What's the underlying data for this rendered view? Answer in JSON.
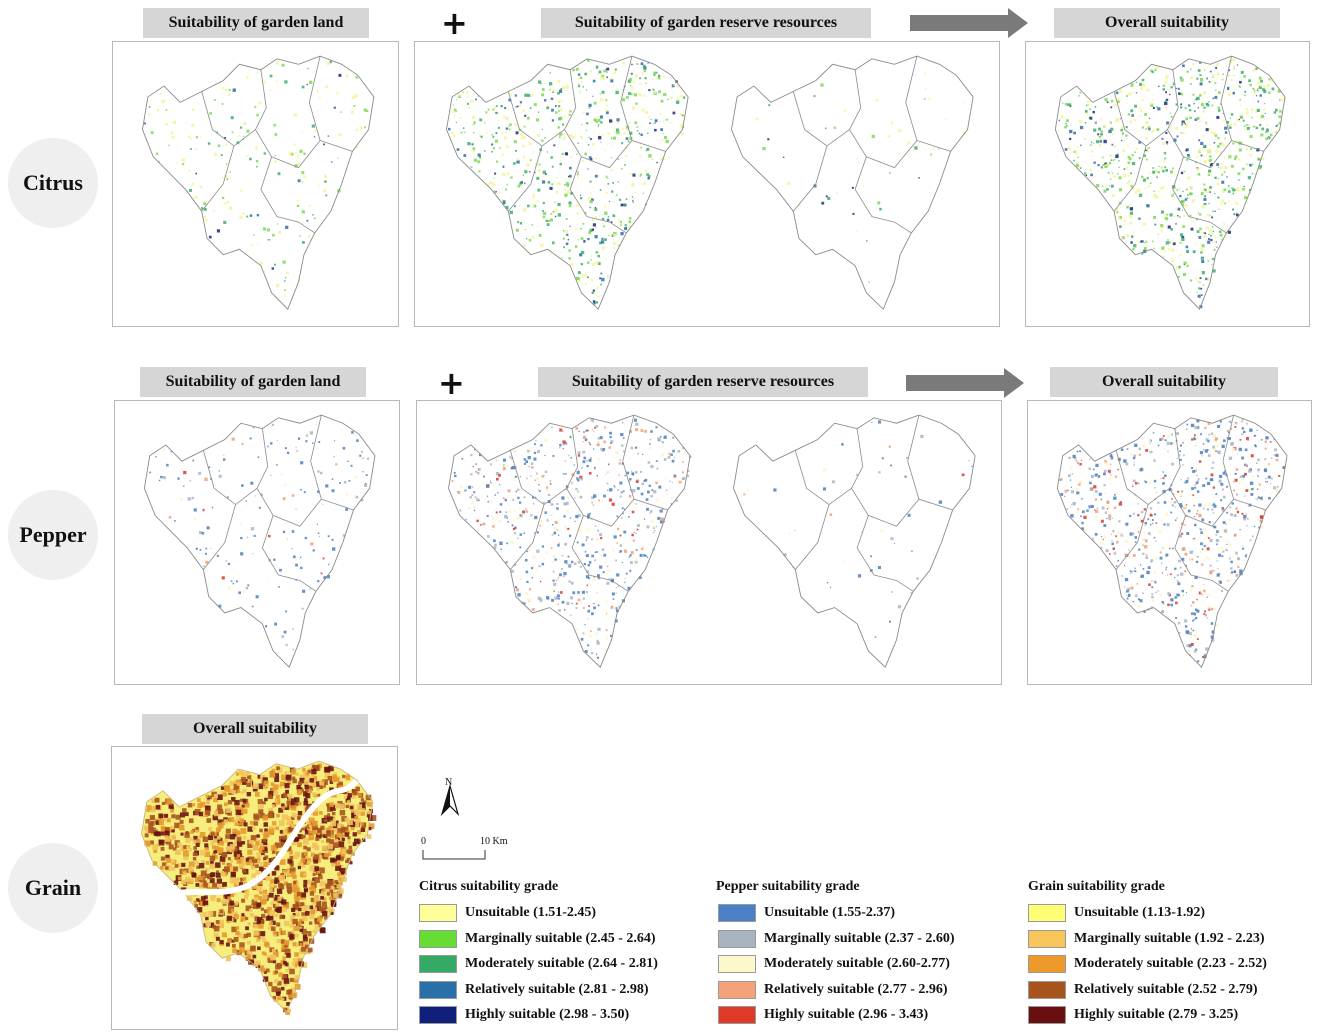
{
  "rows": {
    "citrus": {
      "label": "Citrus",
      "garden_land_title": "Suitability of garden land",
      "reserve_title": "Suitability of garden reserve resources",
      "overall_title": "Overall suitability",
      "plus": "+",
      "palette": [
        "#f5f59a",
        "#7ed957",
        "#3dae6a",
        "#2f6fa7",
        "#1a2a7a"
      ]
    },
    "pepper": {
      "label": "Pepper",
      "garden_land_title": "Suitability of garden land",
      "reserve_title": "Suitability of garden reserve resources",
      "overall_title": "Overall suitability",
      "plus": "+",
      "palette": [
        "#4a7fc0",
        "#a9b6c2",
        "#fbf6c8",
        "#f0a07a",
        "#d83a2c"
      ]
    },
    "grain": {
      "label": "Grain",
      "overall_title": "Overall suitability",
      "palette": [
        "#f6ee7c",
        "#f2c35d",
        "#e6982e",
        "#a9541e",
        "#6a1412"
      ]
    }
  },
  "map_extras": {
    "north_label": "N",
    "scale_start": "0",
    "scale_end": "10 Km"
  },
  "legends": {
    "citrus": {
      "title": "Citrus suitability grade",
      "items": [
        {
          "label": "Unsuitable (1.51-2.45)",
          "color": "#ffff99"
        },
        {
          "label": "Marginally suitable (2.45 - 2.64)",
          "color": "#66dd33"
        },
        {
          "label": "Moderately suitable (2.64 - 2.81)",
          "color": "#33aa66"
        },
        {
          "label": "Relatively suitable (2.81 - 2.98)",
          "color": "#2a70a8"
        },
        {
          "label": "Highly suitable (2.98 - 3.50)",
          "color": "#101f7a"
        }
      ]
    },
    "pepper": {
      "title": "Pepper suitability grade",
      "items": [
        {
          "label": "Unsuitable (1.55-2.37)",
          "color": "#4a80c4"
        },
        {
          "label": "Marginally suitable (2.37 - 2.60)",
          "color": "#a8b4c0"
        },
        {
          "label": "Moderately suitable (2.60-2.77)",
          "color": "#fdf8cc"
        },
        {
          "label": "Relatively suitable (2.77 - 2.96)",
          "color": "#f3a27a"
        },
        {
          "label": "Highly suitable (2.96 - 3.43)",
          "color": "#dd3a2a"
        }
      ]
    },
    "grain": {
      "title": "Grain suitability grade",
      "items": [
        {
          "label": "Unsuitable (1.13-1.92)",
          "color": "#ffff77"
        },
        {
          "label": "Marginally suitable (1.92 - 2.23)",
          "color": "#f7c55a"
        },
        {
          "label": "Moderately suitable (2.23 - 2.52)",
          "color": "#ee9a2a"
        },
        {
          "label": "Relatively suitable (2.52 - 2.79)",
          "color": "#a8521c"
        },
        {
          "label": "Highly suitable (2.79 - 3.25)",
          "color": "#6a0f0f"
        }
      ]
    }
  }
}
